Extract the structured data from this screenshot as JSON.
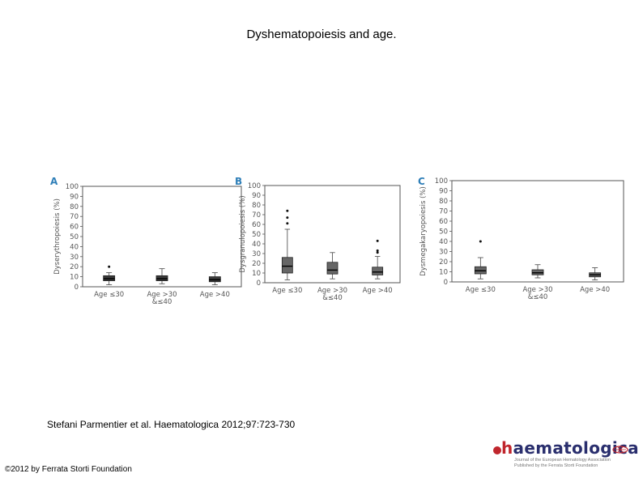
{
  "title": "Dyshematopoiesis and age.",
  "citation": "Stefani Parmentier et al. Haematologica 2012;97:723-730",
  "copyright": "©2012 by Ferrata Storti Foundation",
  "logo": {
    "h": "h",
    "rest": "aematologica",
    "tagline1": "Journal of the European Hematology Association",
    "tagline2": "Published by the Ferrata Storti Foundation"
  },
  "colors": {
    "box_light": "#666666",
    "box_dark": "#3a3a3a",
    "axis": "#555555"
  },
  "chart_data": [
    {
      "panel": "A",
      "type": "box",
      "ylabel": "Dyserythropoiesis (%)",
      "ylim": [
        0,
        100
      ],
      "yticks": [
        "0",
        "10",
        "20",
        "30",
        "40",
        "50",
        "60",
        "70",
        "80",
        "90",
        "100"
      ],
      "categories": [
        [
          "Age ≤30"
        ],
        [
          "Age >30",
          "&≤40"
        ],
        [
          "Age >40"
        ]
      ],
      "boxes": [
        {
          "whisker_low": 2,
          "q1": 6,
          "median": 8,
          "q3": 11,
          "whisker_high": 14,
          "outliers": [
            20
          ]
        },
        {
          "whisker_low": 3,
          "q1": 6,
          "median": 8,
          "q3": 11,
          "whisker_high": 18,
          "outliers": []
        },
        {
          "whisker_low": 2,
          "q1": 5,
          "median": 7,
          "q3": 10,
          "whisker_high": 14,
          "outliers": []
        }
      ]
    },
    {
      "panel": "B",
      "type": "box",
      "ylabel": "Dysgranulopoiesis (%)",
      "ylim": [
        0,
        100
      ],
      "yticks": [
        "0",
        "10",
        "20",
        "30",
        "40",
        "50",
        "60",
        "70",
        "80",
        "90",
        "100"
      ],
      "categories": [
        [
          "Age ≤30"
        ],
        [
          "Age >30",
          "&≤40"
        ],
        [
          "Age >40"
        ]
      ],
      "boxes": [
        {
          "whisker_low": 3,
          "q1": 10,
          "median": 17,
          "q3": 26,
          "whisker_high": 55,
          "outliers": [
            61,
            67,
            74
          ]
        },
        {
          "whisker_low": 4,
          "q1": 9,
          "median": 13,
          "q3": 21,
          "whisker_high": 31,
          "outliers": []
        },
        {
          "whisker_low": 4,
          "q1": 8,
          "median": 11,
          "q3": 16,
          "whisker_high": 27,
          "outliers": [
            31,
            33,
            43
          ]
        }
      ]
    },
    {
      "panel": "C",
      "type": "box",
      "ylabel": "Dysmegakaryopoiesis (%)",
      "ylim": [
        0,
        100
      ],
      "yticks": [
        "0",
        "10",
        "20",
        "30",
        "40",
        "50",
        "60",
        "70",
        "80",
        "90",
        "100"
      ],
      "categories": [
        [
          "Age ≤30"
        ],
        [
          "Age >30",
          "&≤40"
        ],
        [
          "Age >40"
        ]
      ],
      "boxes": [
        {
          "whisker_low": 3,
          "q1": 8,
          "median": 11,
          "q3": 15,
          "whisker_high": 24,
          "outliers": [
            40
          ]
        },
        {
          "whisker_low": 4,
          "q1": 7,
          "median": 9,
          "q3": 12,
          "whisker_high": 17,
          "outliers": []
        },
        {
          "whisker_low": 2,
          "q1": 5,
          "median": 7,
          "q3": 9,
          "whisker_high": 14,
          "outliers": []
        }
      ]
    }
  ]
}
